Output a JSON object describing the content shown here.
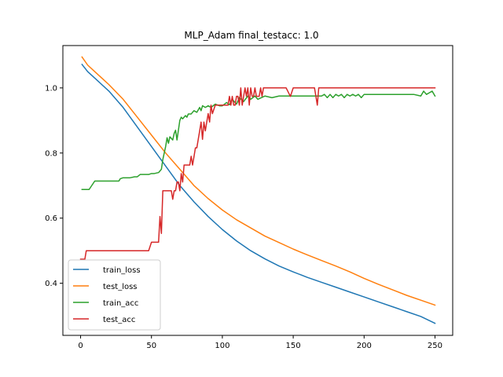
{
  "chart_data": {
    "type": "line",
    "title": "MLP_Adam  final_testacc: 1.0",
    "xlabel": "",
    "ylabel": "",
    "xlim": [
      -12.5,
      262.5
    ],
    "ylim": [
      0.24,
      1.13
    ],
    "xticks": [
      0,
      50,
      100,
      150,
      200,
      250
    ],
    "yticks": [
      0.4,
      0.6,
      0.8,
      1.0
    ],
    "xtick_labels": [
      "0",
      "50",
      "100",
      "150",
      "200",
      "250"
    ],
    "ytick_labels": [
      "0.4",
      "0.6",
      "0.8",
      "1.0"
    ],
    "grid": false,
    "legend_position": "lower-left",
    "series": [
      {
        "name": "train_loss",
        "color": "#1f77b4",
        "x": [
          1,
          5,
          10,
          20,
          30,
          40,
          50,
          60,
          70,
          80,
          90,
          100,
          110,
          120,
          130,
          140,
          150,
          160,
          170,
          180,
          190,
          200,
          210,
          220,
          230,
          240,
          250
        ],
        "values": [
          1.072,
          1.05,
          1.03,
          0.99,
          0.94,
          0.88,
          0.82,
          0.76,
          0.7,
          0.65,
          0.605,
          0.565,
          0.53,
          0.5,
          0.475,
          0.453,
          0.435,
          0.418,
          0.403,
          0.388,
          0.373,
          0.358,
          0.343,
          0.328,
          0.313,
          0.298,
          0.277
        ]
      },
      {
        "name": "test_loss",
        "color": "#ff7f0e",
        "x": [
          1,
          5,
          10,
          20,
          30,
          40,
          50,
          60,
          70,
          80,
          90,
          100,
          110,
          120,
          130,
          140,
          150,
          160,
          170,
          180,
          190,
          200,
          210,
          220,
          230,
          240,
          250
        ],
        "values": [
          1.095,
          1.07,
          1.05,
          1.01,
          0.965,
          0.91,
          0.855,
          0.8,
          0.75,
          0.7,
          0.66,
          0.625,
          0.595,
          0.57,
          0.545,
          0.525,
          0.505,
          0.487,
          0.47,
          0.453,
          0.435,
          0.415,
          0.397,
          0.38,
          0.363,
          0.348,
          0.333
        ]
      },
      {
        "name": "train_acc",
        "color": "#2ca02c",
        "x": [
          1,
          5,
          6,
          10,
          20,
          27,
          28,
          30,
          35,
          38,
          40,
          42,
          45,
          48,
          50,
          52,
          55,
          57,
          58,
          60,
          61,
          62,
          63,
          65,
          66,
          67,
          68,
          70,
          71,
          72,
          74,
          75,
          76,
          78,
          80,
          82,
          84,
          85,
          86,
          88,
          90,
          92,
          95,
          98,
          100,
          103,
          105,
          107,
          110,
          112,
          115,
          118,
          120,
          123,
          125,
          130,
          135,
          140,
          145,
          150,
          155,
          160,
          165,
          170,
          172,
          174,
          176,
          178,
          180,
          182,
          184,
          186,
          188,
          190,
          192,
          194,
          196,
          198,
          200,
          205,
          210,
          215,
          220,
          225,
          230,
          235,
          240,
          242,
          244,
          246,
          248,
          250
        ],
        "values": [
          0.688,
          0.688,
          0.688,
          0.714,
          0.714,
          0.714,
          0.721,
          0.724,
          0.724,
          0.727,
          0.727,
          0.734,
          0.734,
          0.734,
          0.737,
          0.737,
          0.74,
          0.75,
          0.78,
          0.82,
          0.847,
          0.83,
          0.85,
          0.84,
          0.86,
          0.87,
          0.84,
          0.9,
          0.91,
          0.905,
          0.915,
          0.91,
          0.92,
          0.92,
          0.93,
          0.925,
          0.94,
          0.93,
          0.945,
          0.94,
          0.945,
          0.94,
          0.95,
          0.945,
          0.945,
          0.955,
          0.948,
          0.965,
          0.95,
          0.97,
          0.958,
          0.975,
          0.965,
          0.975,
          0.965,
          0.975,
          0.97,
          0.975,
          0.975,
          0.975,
          0.975,
          0.975,
          0.975,
          0.975,
          0.98,
          0.97,
          0.98,
          0.97,
          0.98,
          0.975,
          0.98,
          0.97,
          0.98,
          0.975,
          0.98,
          0.975,
          0.98,
          0.97,
          0.98,
          0.98,
          0.98,
          0.98,
          0.98,
          0.98,
          0.98,
          0.98,
          0.975,
          0.99,
          0.98,
          0.985,
          0.99,
          0.975
        ]
      },
      {
        "name": "test_acc",
        "color": "#d62728",
        "x": [
          0,
          3,
          4,
          5,
          10,
          20,
          30,
          40,
          45,
          48,
          50,
          52,
          55,
          56,
          57,
          58,
          59,
          60,
          62,
          63,
          64,
          65,
          66,
          67,
          68,
          69,
          70,
          71,
          72,
          73,
          75,
          77,
          78,
          79,
          80,
          81,
          82,
          83,
          84,
          85,
          86,
          87,
          88,
          89,
          90,
          91,
          92,
          93,
          95,
          98,
          100,
          102,
          104,
          105,
          106,
          107,
          108,
          109,
          110,
          111,
          112,
          113,
          114,
          115,
          116,
          117,
          118,
          119,
          120,
          121,
          122,
          123,
          124,
          125,
          126,
          127,
          128,
          129,
          130,
          135,
          140,
          145,
          148,
          150,
          155,
          160,
          165,
          166,
          167,
          168,
          169,
          170,
          180,
          190,
          200,
          210,
          220,
          230,
          240,
          250
        ],
        "values": [
          0.474,
          0.474,
          0.5,
          0.5,
          0.5,
          0.5,
          0.5,
          0.5,
          0.5,
          0.5,
          0.526,
          0.526,
          0.526,
          0.605,
          0.553,
          0.684,
          0.684,
          0.684,
          0.684,
          0.684,
          0.684,
          0.658,
          0.684,
          0.684,
          0.711,
          0.711,
          0.684,
          0.737,
          0.711,
          0.763,
          0.763,
          0.763,
          0.79,
          0.763,
          0.789,
          0.816,
          0.816,
          0.842,
          0.868,
          0.895,
          0.842,
          0.895,
          0.868,
          0.895,
          0.921,
          0.895,
          0.947,
          0.921,
          0.947,
          0.947,
          0.947,
          0.947,
          0.947,
          0.974,
          0.947,
          0.974,
          0.947,
          0.947,
          0.974,
          0.974,
          0.947,
          1.0,
          0.947,
          0.974,
          1.0,
          0.974,
          1.0,
          0.947,
          1.0,
          0.974,
          0.974,
          1.0,
          0.974,
          0.974,
          0.974,
          1.0,
          0.974,
          1.0,
          1.0,
          1.0,
          1.0,
          1.0,
          0.974,
          1.0,
          1.0,
          1.0,
          1.0,
          0.974,
          0.947,
          1.0,
          1.0,
          1.0,
          1.0,
          1.0,
          1.0,
          1.0,
          1.0,
          1.0,
          1.0,
          1.0
        ]
      }
    ]
  }
}
